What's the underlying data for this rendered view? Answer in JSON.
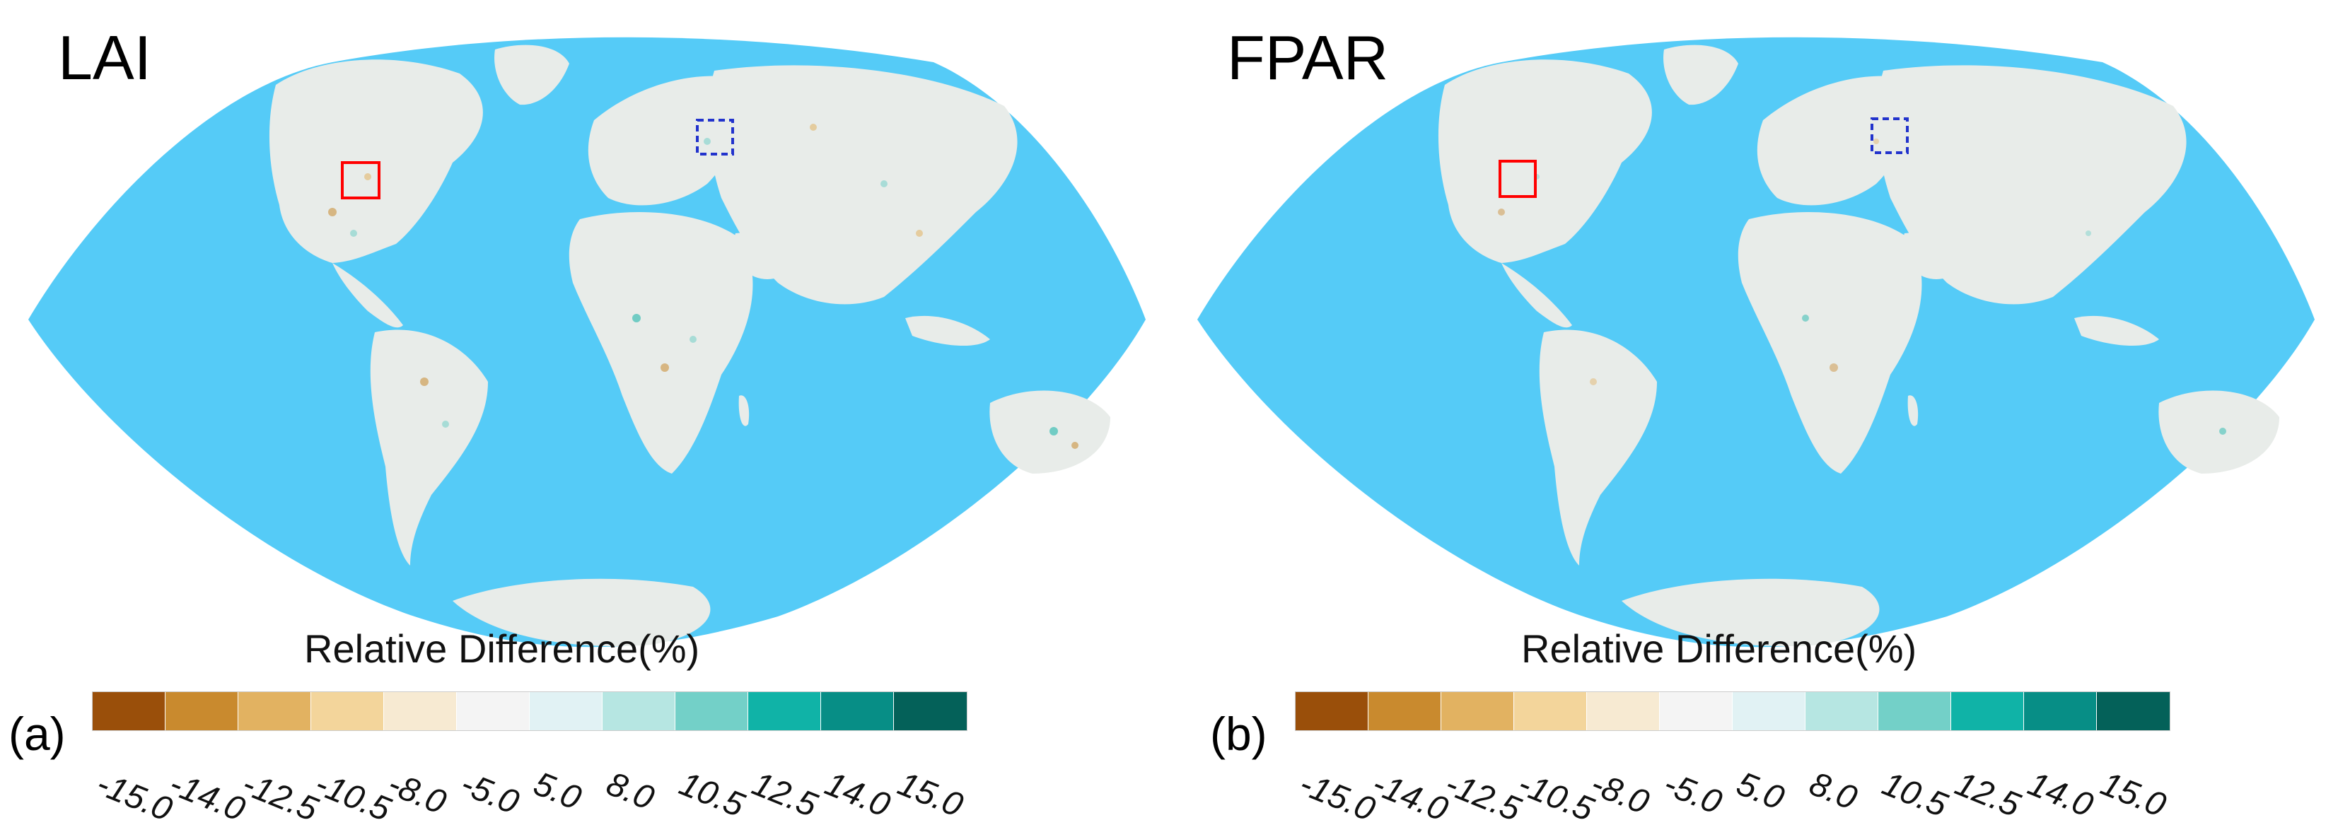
{
  "panels": [
    {
      "title": "LAI",
      "letter": "(a)",
      "legend_title": "Relative Difference(%)"
    },
    {
      "title": "FPAR",
      "letter": "(b)",
      "legend_title": "Relative Difference(%)"
    }
  ],
  "legend": {
    "tick_labels": [
      "-15.0",
      "-14.0",
      "-12.5",
      "-10.5",
      "-8.0",
      "-5.0",
      "5.0",
      "8.0",
      "10.5",
      "12.5",
      "14.0",
      "15.0"
    ],
    "colors": [
      "#9a4f0a",
      "#c98a2e",
      "#e2b261",
      "#f3d59b",
      "#f7ead2",
      "#f4f4f4",
      "#e1f2f4",
      "#b6e6e2",
      "#73d0c8",
      "#10b3a7",
      "#078e86",
      "#046159"
    ]
  },
  "map_colors": {
    "ocean": "#55cbf7",
    "land": "#e8ece9",
    "red_box": "#ff0000",
    "blue_box": "#2233cc"
  }
}
